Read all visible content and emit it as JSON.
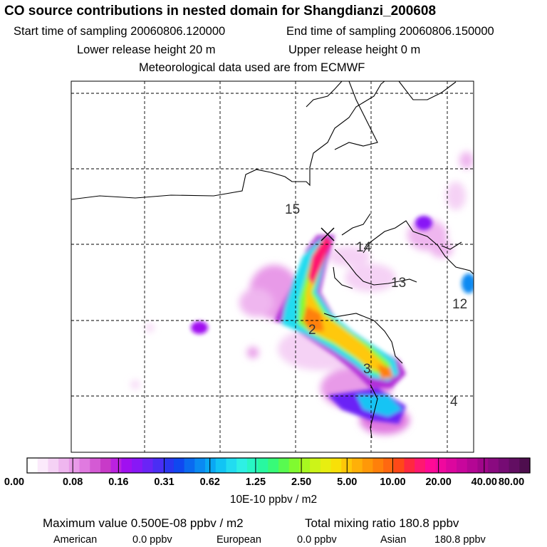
{
  "header": {
    "title": "CO  source contributions in nested domain for Shangdianzi_200608",
    "start_time": "Start time of sampling 20060806.120000",
    "end_time": "End time of sampling 20060806.150000",
    "lower_height": "Lower release height   20 m",
    "upper_height": "Upper release height    0 m",
    "met_data": "Meteorological data used are from ECMWF"
  },
  "map": {
    "back_trajectory_labels": [
      "15",
      "14",
      "13",
      "12",
      "2",
      "3",
      "4"
    ],
    "receptor_marker": "X"
  },
  "chart_data": {
    "type": "heatmap",
    "title": "CO  source contributions in nested domain for Shangdianzi_200608",
    "colorbar": {
      "tick_labels": [
        "0.00",
        "0.08",
        "0.16",
        "0.31",
        "0.62",
        "1.25",
        "2.50",
        "5.00",
        "10.00",
        "20.00",
        "40.00",
        "80.00"
      ],
      "units": "10E-10 ppbv / m2",
      "colors": [
        "#ffffff",
        "#fbeafb",
        "#f5d2f5",
        "#efb6ef",
        "#e89ae8",
        "#e07ae0",
        "#d45ad4",
        "#c83ac8",
        "#bb22e0",
        "#a010f0",
        "#8818f6",
        "#6a24f6",
        "#4a2ef4",
        "#2a36f0",
        "#1048f0",
        "#0a6af0",
        "#0a8af2",
        "#0aa8f4",
        "#12c4f4",
        "#22dcf0",
        "#2ef0e4",
        "#28f6c4",
        "#28f8a0",
        "#38fa78",
        "#58fa50",
        "#80fa30",
        "#a8f820",
        "#ccf418",
        "#e8ee10",
        "#f8e008",
        "#ffc808",
        "#ffb008",
        "#ff9808",
        "#ff800a",
        "#ff6810",
        "#ff4818",
        "#ff2840",
        "#ff1870",
        "#ff0a96",
        "#f0089e",
        "#dc069e",
        "#c8069c",
        "#b40694",
        "#a0068a",
        "#8a0a80",
        "#760c74",
        "#620e62",
        "#4e0e4e"
      ]
    },
    "summary": {
      "max_label": "Maximum value  0.500E-08 ppbv / m2",
      "total_label": "Total mixing ratio     180.8 ppbv"
    },
    "regional": [
      {
        "name": "American",
        "value": "0.0 ppbv"
      },
      {
        "name": "European",
        "value": "0.0 ppbv"
      },
      {
        "name": "Asian",
        "value": "180.8 ppbv"
      }
    ],
    "plume_blobs": [
      {
        "level": 0.55,
        "x": 0.62,
        "y": 0.4,
        "rx": 0.03,
        "ry": 0.03
      },
      {
        "level": 0.5,
        "x": 0.45,
        "y": 0.55,
        "rx": 0.07,
        "ry": 0.08
      }
    ]
  }
}
